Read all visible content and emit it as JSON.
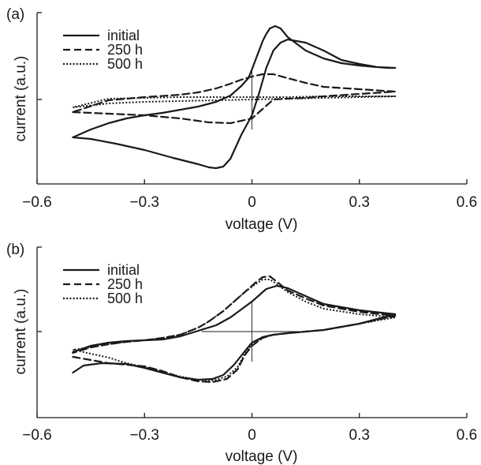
{
  "figure": {
    "panels": [
      "(a)",
      "(b)"
    ]
  },
  "chart_data": [
    {
      "type": "line",
      "panel_label": "(a)",
      "xlabel": "voltage (V)",
      "ylabel": "current (a.u.)",
      "xlim": [
        -0.6,
        0.6
      ],
      "ylim": [
        -1.0,
        1.0
      ],
      "xticks": [
        -0.6,
        -0.3,
        0,
        0.3,
        0.6
      ],
      "xtick_labels": [
        "−0.6",
        "−0.3",
        "0",
        "0.3",
        "0.6"
      ],
      "yticks": [
        0
      ],
      "grid": false,
      "legend_position": "top-left",
      "crosshair": {
        "x": 0,
        "y_range": [
          -0.38,
          0.38
        ]
      },
      "series": [
        {
          "name": "initial",
          "style": "solid",
          "x": [
            -0.5,
            -0.45,
            -0.38,
            -0.3,
            -0.22,
            -0.15,
            -0.12,
            -0.1,
            -0.08,
            -0.06,
            -0.03,
            0,
            0.02,
            0.04,
            0.06,
            0.08,
            0.1,
            0.15,
            0.2,
            0.25,
            0.3,
            0.35,
            0.38,
            0.4,
            0.35,
            0.3,
            0.25,
            0.2,
            0.15,
            0.1,
            0.08,
            0.065,
            0.05,
            0.04,
            0.03,
            0.02,
            0.01,
            0,
            -0.01,
            -0.03,
            -0.06,
            -0.1,
            -0.15,
            -0.2,
            -0.25,
            -0.3,
            -0.35,
            -0.4,
            -0.45,
            -0.5
          ],
          "y": [
            -0.48,
            -0.5,
            -0.56,
            -0.64,
            -0.74,
            -0.82,
            -0.86,
            -0.87,
            -0.85,
            -0.75,
            -0.45,
            -0.2,
            0.08,
            0.4,
            0.62,
            0.72,
            0.76,
            0.72,
            0.62,
            0.5,
            0.45,
            0.41,
            0.4,
            0.4,
            0.41,
            0.43,
            0.46,
            0.52,
            0.62,
            0.79,
            0.9,
            0.93,
            0.9,
            0.83,
            0.74,
            0.62,
            0.5,
            0.38,
            0.27,
            0.17,
            0.05,
            -0.03,
            -0.09,
            -0.13,
            -0.17,
            -0.2,
            -0.24,
            -0.3,
            -0.38,
            -0.48
          ]
        },
        {
          "name": "250 h",
          "style": "dashed",
          "x": [
            -0.5,
            -0.4,
            -0.3,
            -0.2,
            -0.12,
            -0.06,
            0,
            0.03,
            0.06,
            0.1,
            0.15,
            0.2,
            0.3,
            0.4,
            0.3,
            0.2,
            0.15,
            0.1,
            0.06,
            0.03,
            0,
            -0.03,
            -0.06,
            -0.1,
            -0.15,
            -0.2,
            -0.3,
            -0.4,
            -0.5
          ],
          "y": [
            -0.16,
            -0.18,
            -0.2,
            -0.24,
            -0.29,
            -0.3,
            -0.24,
            -0.12,
            0,
            0.01,
            0.02,
            0.04,
            0.07,
            0.1,
            0.13,
            0.16,
            0.21,
            0.27,
            0.32,
            0.32,
            0.29,
            0.25,
            0.2,
            0.14,
            0.09,
            0.06,
            0.03,
            -0.01,
            -0.16
          ]
        },
        {
          "name": "500 h",
          "style": "dotted",
          "x": [
            -0.5,
            -0.4,
            -0.3,
            -0.2,
            -0.1,
            0,
            0.1,
            0.2,
            0.3,
            0.4,
            0.3,
            0.2,
            0.1,
            0,
            -0.1,
            -0.2,
            -0.3,
            -0.4,
            -0.5
          ],
          "y": [
            -0.1,
            -0.05,
            -0.03,
            -0.02,
            -0.01,
            0,
            0.01,
            0.02,
            0.03,
            0.04,
            0.04,
            0.04,
            0.03,
            0.03,
            0.03,
            0.03,
            0.02,
            0.01,
            -0.1
          ]
        }
      ]
    },
    {
      "type": "line",
      "panel_label": "(b)",
      "xlabel": "voltage (V)",
      "ylabel": "current (a.u.)",
      "xlim": [
        -0.6,
        0.6
      ],
      "ylim": [
        -1.0,
        1.0
      ],
      "xticks": [
        -0.6,
        -0.3,
        0,
        0.3,
        0.6
      ],
      "xtick_labels": [
        "−0.6",
        "−0.3",
        "0",
        "0.3",
        "0.6"
      ],
      "yticks": [
        0
      ],
      "grid": false,
      "legend_position": "top-left",
      "crosshair": {
        "x": 0,
        "y_range": [
          -0.38,
          0.38
        ],
        "x_range": [
          -0.14,
          0.14
        ]
      },
      "series": [
        {
          "name": "initial",
          "style": "solid",
          "x": [
            -0.5,
            -0.47,
            -0.42,
            -0.35,
            -0.3,
            -0.25,
            -0.2,
            -0.15,
            -0.11,
            -0.08,
            -0.05,
            -0.02,
            0,
            0.03,
            0.06,
            0.1,
            0.2,
            0.3,
            0.4,
            0.3,
            0.2,
            0.15,
            0.1,
            0.07,
            0.04,
            0.02,
            0,
            -0.03,
            -0.06,
            -0.1,
            -0.15,
            -0.2,
            -0.25,
            -0.3,
            -0.35,
            -0.4,
            -0.45,
            -0.5
          ],
          "y": [
            -0.52,
            -0.43,
            -0.4,
            -0.41,
            -0.46,
            -0.52,
            -0.58,
            -0.61,
            -0.6,
            -0.55,
            -0.42,
            -0.25,
            -0.14,
            -0.07,
            -0.04,
            -0.02,
            0.02,
            0.1,
            0.22,
            0.27,
            0.35,
            0.45,
            0.55,
            0.58,
            0.54,
            0.46,
            0.38,
            0.28,
            0.18,
            0.08,
            0.01,
            -0.06,
            -0.1,
            -0.11,
            -0.12,
            -0.14,
            -0.18,
            -0.26
          ]
        },
        {
          "name": "250 h",
          "style": "dashed",
          "x": [
            -0.5,
            -0.45,
            -0.4,
            -0.35,
            -0.3,
            -0.25,
            -0.2,
            -0.15,
            -0.11,
            -0.07,
            -0.04,
            -0.02,
            0,
            0.03,
            0.06,
            0.1,
            0.2,
            0.3,
            0.4,
            0.3,
            0.2,
            0.15,
            0.1,
            0.07,
            0.05,
            0.03,
            0.01,
            -0.02,
            -0.05,
            -0.08,
            -0.12,
            -0.15,
            -0.2,
            -0.25,
            -0.3,
            -0.35,
            -0.4,
            -0.45,
            -0.5
          ],
          "y": [
            -0.32,
            -0.36,
            -0.4,
            -0.42,
            -0.44,
            -0.5,
            -0.58,
            -0.63,
            -0.64,
            -0.6,
            -0.48,
            -0.3,
            -0.18,
            -0.08,
            -0.04,
            -0.02,
            0.02,
            0.1,
            0.2,
            0.25,
            0.33,
            0.42,
            0.52,
            0.63,
            0.7,
            0.69,
            0.62,
            0.5,
            0.38,
            0.26,
            0.13,
            0.05,
            -0.04,
            -0.08,
            -0.11,
            -0.13,
            -0.16,
            -0.2,
            -0.27
          ]
        },
        {
          "name": "500 h",
          "style": "dotted",
          "x": [
            -0.5,
            -0.45,
            -0.4,
            -0.35,
            -0.3,
            -0.25,
            -0.2,
            -0.15,
            -0.11,
            -0.07,
            -0.04,
            -0.02,
            0,
            0.03,
            0.06,
            0.1,
            0.2,
            0.3,
            0.4,
            0.3,
            0.2,
            0.15,
            0.1,
            0.07,
            0.05,
            0.03,
            0.01,
            -0.02,
            -0.05,
            -0.08,
            -0.12,
            -0.15,
            -0.2,
            -0.25,
            -0.3,
            -0.35,
            -0.4,
            -0.45,
            -0.5
          ],
          "y": [
            -0.23,
            -0.28,
            -0.33,
            -0.4,
            -0.45,
            -0.51,
            -0.57,
            -0.61,
            -0.62,
            -0.57,
            -0.45,
            -0.28,
            -0.17,
            -0.08,
            -0.04,
            -0.02,
            0.02,
            0.1,
            0.18,
            0.22,
            0.29,
            0.38,
            0.5,
            0.6,
            0.66,
            0.66,
            0.6,
            0.5,
            0.38,
            0.26,
            0.13,
            0.05,
            -0.04,
            -0.08,
            -0.11,
            -0.13,
            -0.16,
            -0.2,
            -0.23
          ]
        }
      ]
    }
  ]
}
